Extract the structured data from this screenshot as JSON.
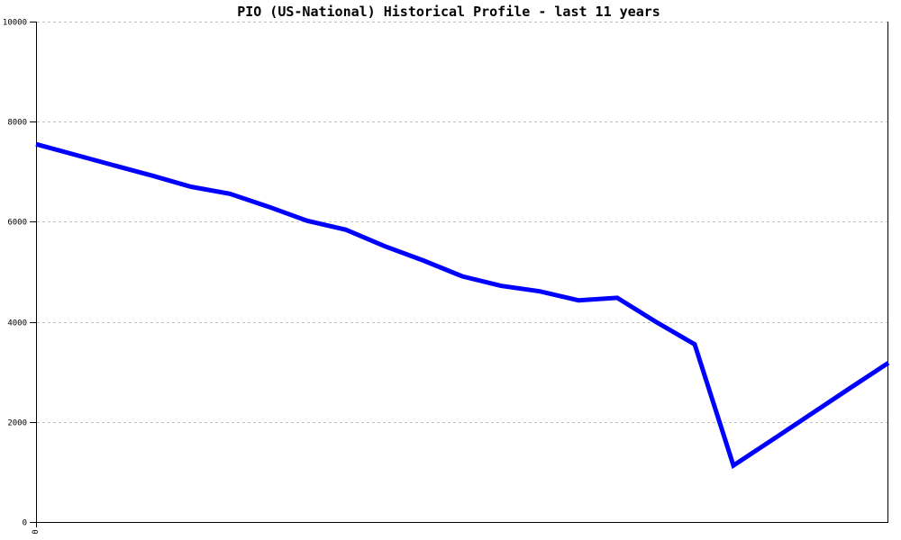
{
  "title": "PIO (US-National) Historical Profile - last 11 years",
  "chart_data": {
    "type": "line",
    "title": "PIO (US-National) Historical Profile - last 11 years",
    "xlabel": "",
    "ylabel": "",
    "ylim": [
      0,
      10000
    ],
    "y_ticks": [
      0,
      2000,
      4000,
      6000,
      8000,
      10000
    ],
    "x_visible_tick_labels": [
      "0"
    ],
    "grid": "horizontal dashed gridlines at each y tick except 0",
    "legend": "none",
    "frame": "left, bottom and right solid black borders; top bounded by the 10000 dashed gridline",
    "series": [
      {
        "name": "PIO (US-National)",
        "color": "#0000ff",
        "x_index": [
          0,
          1,
          2,
          3,
          4,
          5,
          6,
          7,
          8,
          9,
          10,
          11,
          12,
          13,
          14,
          15,
          16,
          17,
          18,
          19,
          20,
          21,
          22
        ],
        "values": [
          7550,
          7340,
          7130,
          6920,
          6700,
          6560,
          6300,
          6020,
          5840,
          5510,
          5225,
          4910,
          4720,
          4610,
          4430,
          4480,
          4000,
          3550,
          1130,
          1640,
          2155,
          2670,
          3180
        ]
      }
    ]
  },
  "axes": {
    "y_tick_labels": [
      "0",
      "2000",
      "4000",
      "6000",
      "8000",
      "10000"
    ],
    "x_origin_label": "0"
  },
  "colors": {
    "line": "#0000ff",
    "grid": "#c0c0c0",
    "axis": "#000000",
    "background": "#ffffff",
    "text": "#000000"
  }
}
